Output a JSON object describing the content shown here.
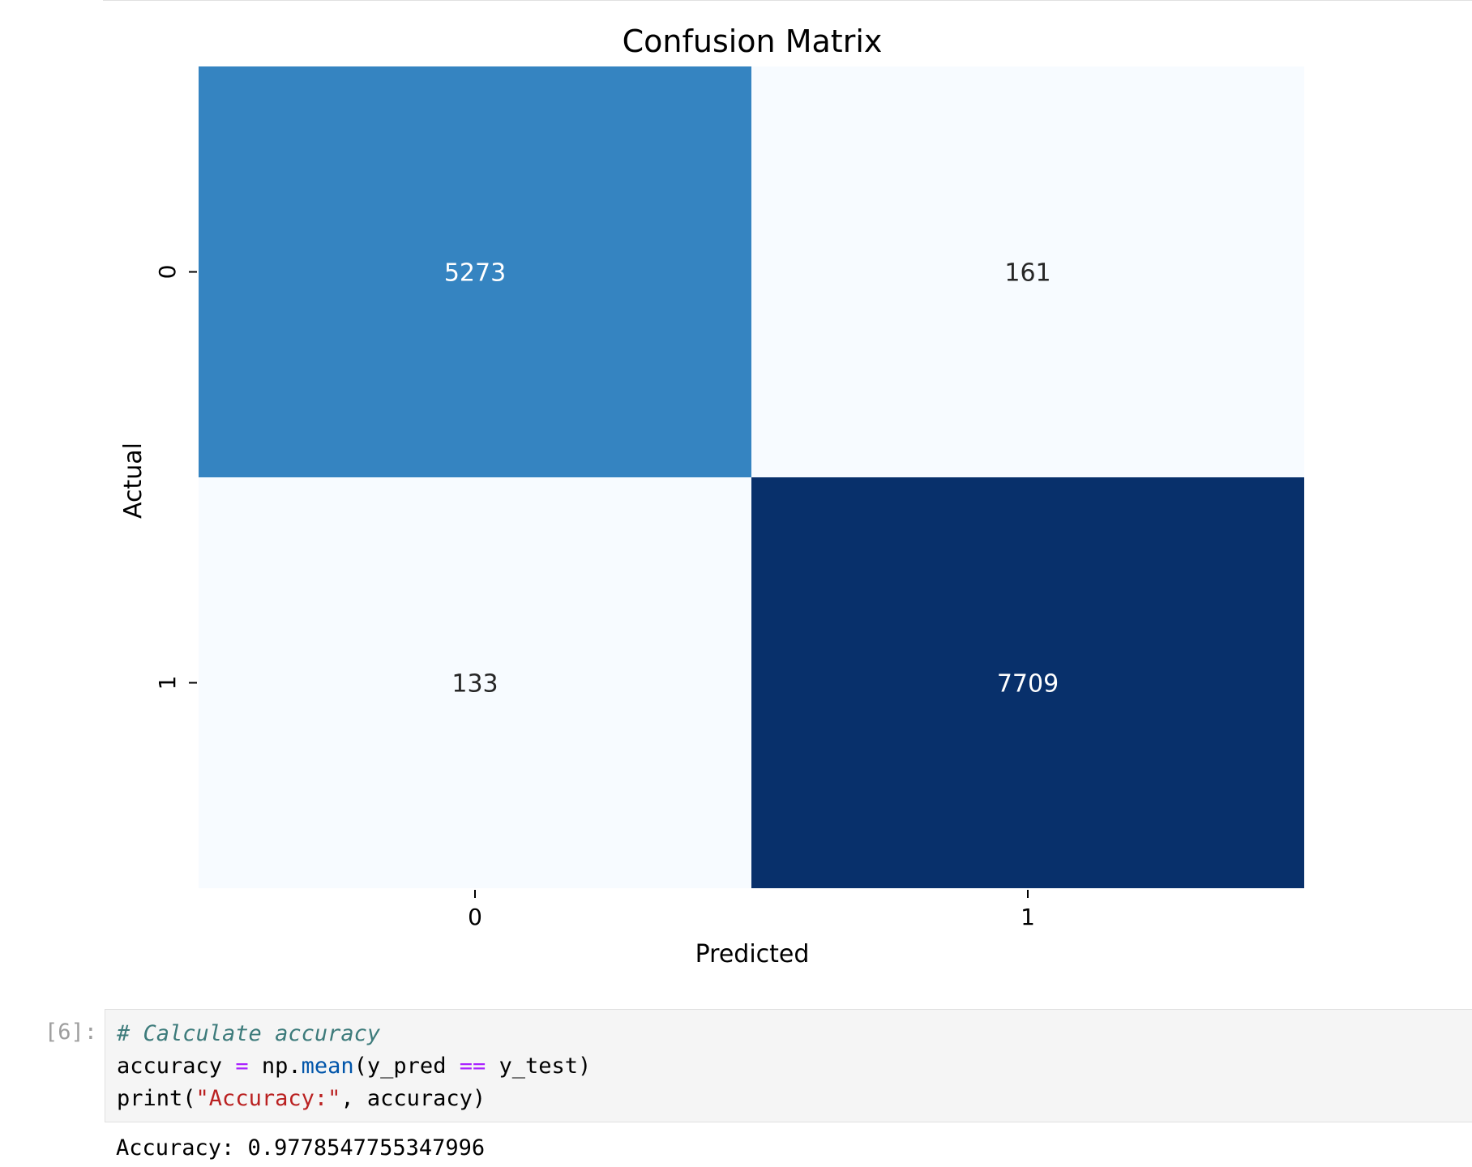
{
  "chart_data": {
    "type": "heatmap",
    "title": "Confusion Matrix",
    "xlabel": "Predicted",
    "ylabel": "Actual",
    "x_tick_labels": [
      "0",
      "1"
    ],
    "y_tick_labels": [
      "0",
      "1"
    ],
    "matrix": [
      [
        5273,
        161
      ],
      [
        133,
        7709
      ]
    ],
    "matrix_labels": [
      [
        "5273",
        "161"
      ],
      [
        "133",
        "7709"
      ]
    ],
    "colormap": "Blues",
    "colorbar": false,
    "cell_colors": [
      [
        "#3584c1",
        "#f7fbff"
      ],
      [
        "#f7fbff",
        "#08306b"
      ]
    ],
    "annotation_colors": [
      [
        "#ffffff",
        "#262626"
      ],
      [
        "#262626",
        "#ffffff"
      ]
    ]
  },
  "cell": {
    "prompt": "[6]:",
    "code": {
      "line1": {
        "comment": "# Calculate accuracy"
      },
      "line2": {
        "var": "accuracy",
        "assign": "=",
        "module": "np.",
        "func": "mean",
        "args_open": "(y_pred ",
        "eq": "==",
        "args_close": " y_test)"
      },
      "line3": {
        "func": "print(",
        "string": "\"Accuracy:\"",
        "rest": ", accuracy)"
      }
    },
    "output": "Accuracy: 0.9778547755347996"
  },
  "colors": {
    "comment": "#3d7b7b",
    "operator": "#aa22ff",
    "builtin": "#0055aa",
    "string": "#ba2121",
    "prompt": "#9e9e9e",
    "cell_bg": "#f5f5f5"
  }
}
